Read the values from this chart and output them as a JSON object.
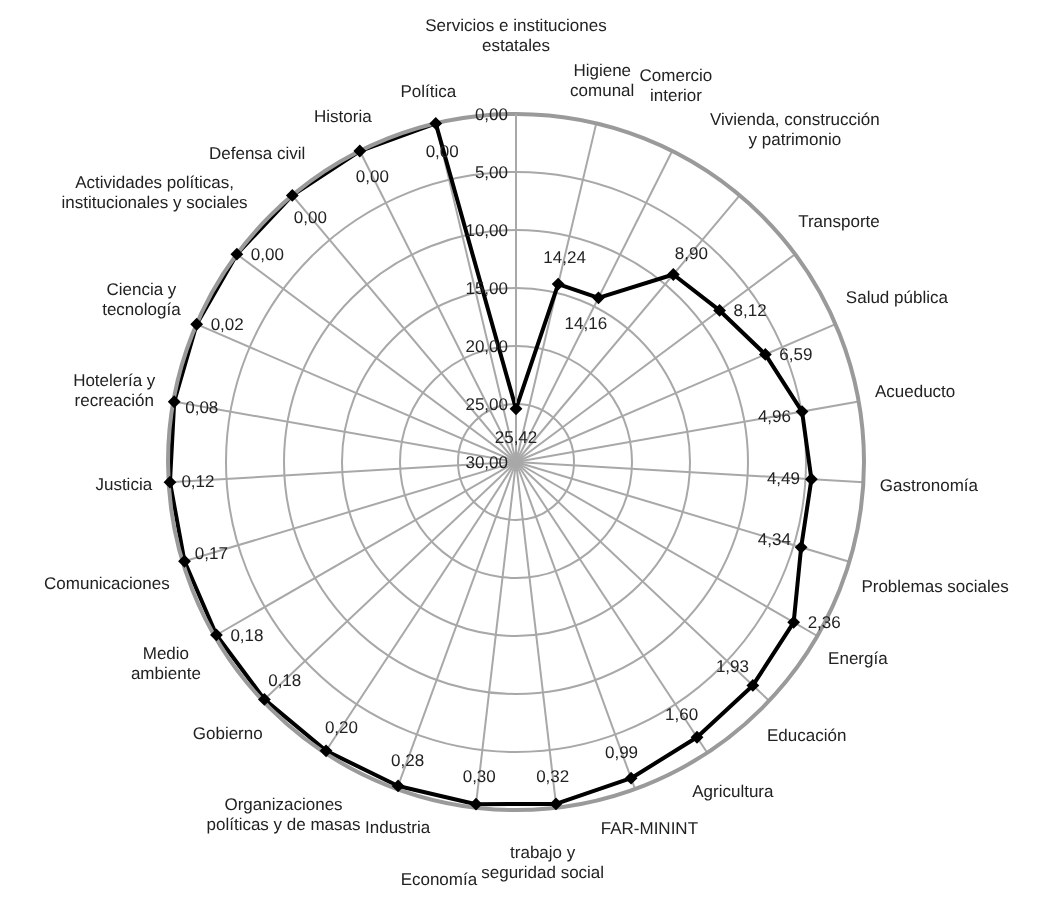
{
  "chart_data": {
    "type": "radar",
    "categories": [
      "Servicios e instituciones\nestatales",
      "Higiene\ncomunal",
      "Comercio\ninterior",
      "Vivienda, construcción\ny patrimonio",
      "Transporte",
      "Salud pública",
      "Acueducto",
      "Gastronomía",
      "Problemas sociales",
      "Energía",
      "Educación",
      "Agricultura",
      "FAR-MININT",
      "trabajo y\nseguridad social",
      "Economía",
      "Industria",
      "Organizaciones\npolíticas y de masas",
      "Gobierno",
      "Medio\nambiente",
      "Comunicaciones",
      "Justicia",
      "Hotelería y\nrecreación",
      "Ciencia y\ntecnología",
      "Actividades políticas,\ninstitucionales y sociales",
      "Defensa civil",
      "Historia",
      "Política"
    ],
    "series": [
      {
        "color": "#000000",
        "values": [
          25.42,
          14.24,
          14.16,
          8.9,
          8.12,
          6.59,
          4.96,
          4.49,
          4.34,
          2.36,
          1.93,
          1.6,
          0.99,
          0.32,
          0.3,
          0.28,
          0.2,
          0.18,
          0.18,
          0.17,
          0.12,
          0.08,
          0.02,
          0,
          0,
          0,
          0
        ],
        "value_labels": [
          "25,42",
          "14,24",
          "14,16",
          "8,90",
          "8,12",
          "6,59",
          "4,96",
          "4,49",
          "4,34",
          "2,36",
          "1,93",
          "1,60",
          "0,99",
          "0,32",
          "0,30",
          "0,28",
          "0,20",
          "0,18",
          "0,18",
          "0,17",
          "0,12",
          "0,08",
          "0,02",
          "0,00",
          "0,00",
          "0,00",
          "0,00"
        ]
      }
    ],
    "ylim": [
      30,
      0
    ],
    "yticks": [
      {
        "value": 0,
        "label": "0,00"
      },
      {
        "value": 5,
        "label": "5,00"
      },
      {
        "value": 10,
        "label": "10,00"
      },
      {
        "value": 15,
        "label": "15,00"
      },
      {
        "value": 20,
        "label": "20,00"
      },
      {
        "value": 25,
        "label": "25,00"
      },
      {
        "value": 30,
        "label": "30,00"
      }
    ],
    "grid": true,
    "marker": "diamond"
  }
}
